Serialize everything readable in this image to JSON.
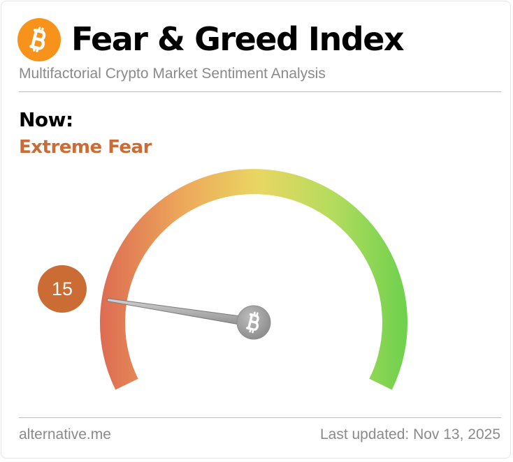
{
  "header": {
    "title": "Fear & Greed Index",
    "subtitle": "Multifactorial Crypto Market Sentiment Analysis",
    "logo_icon": "bitcoin-icon",
    "logo_color": "#f7931a"
  },
  "current": {
    "label": "Now:",
    "classification": "Extreme Fear",
    "value": "15",
    "accent_color": "#cb6c35"
  },
  "gauge": {
    "min": 0,
    "max": 100,
    "value": 15,
    "needle_icon": "bitcoin-icon",
    "colors": [
      "#dc6b52",
      "#eda75a",
      "#e9d662",
      "#b5dc5e",
      "#6fd14d"
    ]
  },
  "footer": {
    "source": "alternative.me",
    "updated": "Last updated: Nov 13, 2025"
  }
}
